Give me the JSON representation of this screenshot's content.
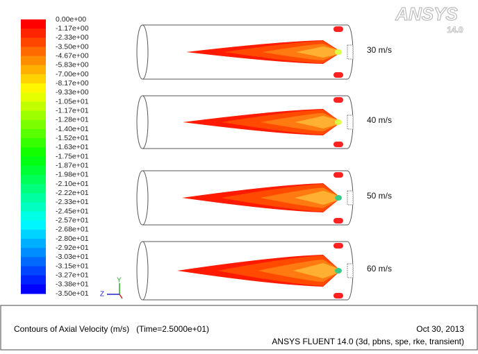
{
  "legend": {
    "labels": [
      "0.00e+00",
      "-1.17e+00",
      "-2.33e+00",
      "-3.50e+00",
      "-4.67e+00",
      "-5.83e+00",
      "-7.00e+00",
      "-8.17e+00",
      "-9.33e+00",
      "-1.05e+01",
      "-1.17e+01",
      "-1.28e+01",
      "-1.40e+01",
      "-1.52e+01",
      "-1.63e+01",
      "-1.75e+01",
      "-1.87e+01",
      "-1.98e+01",
      "-2.10e+01",
      "-2.22e+01",
      "-2.33e+01",
      "-2.45e+01",
      "-2.57e+01",
      "-2.68e+01",
      "-2.80e+01",
      "-2.92e+01",
      "-3.03e+01",
      "-3.15e+01",
      "-3.27e+01",
      "-3.38e+01",
      "-3.50e+01"
    ]
  },
  "logo": {
    "name": "ANSYS",
    "version": "14.0"
  },
  "cases": [
    {
      "label": "30 m/s"
    },
    {
      "label": "40 m/s"
    },
    {
      "label": "50 m/s"
    },
    {
      "label": "60 m/s"
    }
  ],
  "axes": {
    "labels": [
      "Z",
      "Y"
    ]
  },
  "footer": {
    "title": "Contours of Axial Velocity (m/s)",
    "time": "(Time=2.5000e+01)",
    "date": "Oct 30, 2013",
    "software": "ANSYS FLUENT 14.0 (3d, pbns, spe, rke, transient)"
  }
}
